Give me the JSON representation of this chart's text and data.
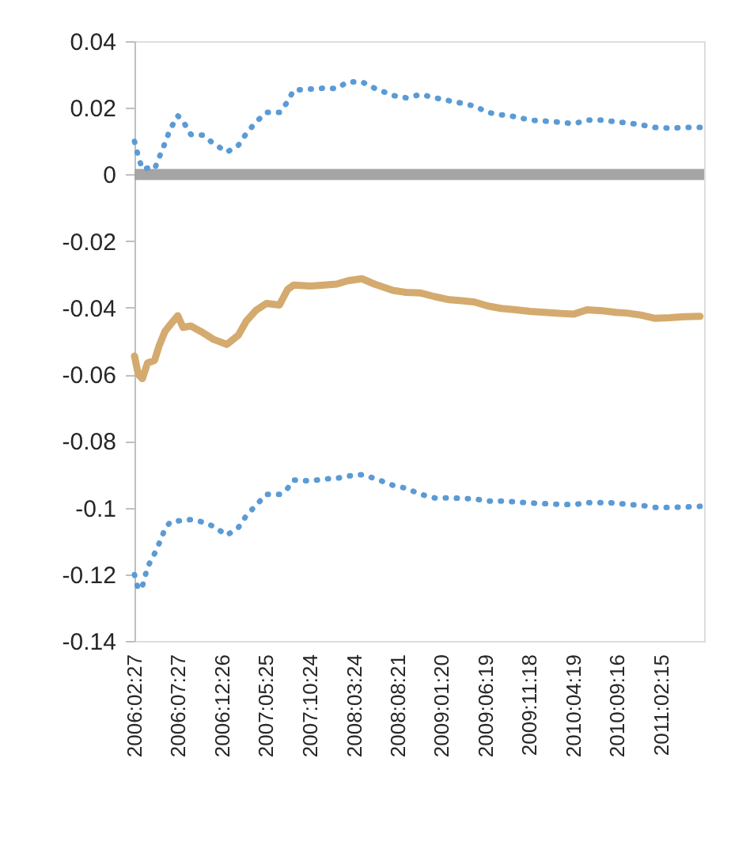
{
  "chart_data": {
    "type": "line",
    "x": [
      "2006-02-27",
      "2006-03-12",
      "2006-03-26",
      "2006-04-13",
      "2006-05-07",
      "2006-05-23",
      "2006-06-12",
      "2006-06-30",
      "2006-07-26",
      "2006-08-13",
      "2006-09-09",
      "2006-10-19",
      "2006-11-26",
      "2007-01-11",
      "2007-02-20",
      "2007-03-19",
      "2007-04-21",
      "2007-05-27",
      "2007-07-11",
      "2007-08-08",
      "2007-08-29",
      "2007-10-25",
      "2007-12-13",
      "2008-01-24",
      "2008-03-03",
      "2008-04-20",
      "2008-06-02",
      "2008-08-05",
      "2008-09-19",
      "2008-11-09",
      "2008-12-28",
      "2009-02-15",
      "2009-03-29",
      "2009-05-13",
      "2009-06-28",
      "2009-08-12",
      "2009-10-02",
      "2009-11-20",
      "2010-01-10",
      "2010-02-28",
      "2010-04-20",
      "2010-06-04",
      "2010-07-27",
      "2010-09-10",
      "2010-10-18",
      "2010-12-06",
      "2011-01-24",
      "2011-03-16",
      "2011-05-04",
      "2011-06-28"
    ],
    "series": [
      {
        "color": "#5b9bd5",
        "line_style": "dotted",
        "values": [
          0.0099,
          0.0054,
          0.0016,
          0.0019,
          0.0016,
          0.0051,
          0.0094,
          0.0136,
          0.0176,
          0.016,
          0.012,
          0.0118,
          0.0093,
          0.0067,
          0.0088,
          0.0123,
          0.0157,
          0.0186,
          0.0186,
          0.0218,
          0.0253,
          0.0256,
          0.0259,
          0.0258,
          0.0278,
          0.0278,
          0.0259,
          0.0237,
          0.023,
          0.024,
          0.023,
          0.0221,
          0.0214,
          0.0205,
          0.0186,
          0.0179,
          0.0173,
          0.0163,
          0.016,
          0.0157,
          0.0152,
          0.0163,
          0.0163,
          0.0158,
          0.0155,
          0.0149,
          0.0141,
          0.0139,
          0.0141,
          0.0141
        ]
      },
      {
        "color": "#d4aa6e",
        "line_style": "solid",
        "values": [
          -0.0545,
          -0.06,
          -0.0613,
          -0.0566,
          -0.0558,
          -0.0514,
          -0.0471,
          -0.0451,
          -0.0424,
          -0.0459,
          -0.0455,
          -0.0474,
          -0.0495,
          -0.051,
          -0.0482,
          -0.044,
          -0.0408,
          -0.0387,
          -0.0392,
          -0.0345,
          -0.0332,
          -0.0335,
          -0.0332,
          -0.0329,
          -0.0319,
          -0.0313,
          -0.0329,
          -0.0348,
          -0.0354,
          -0.0356,
          -0.0367,
          -0.0376,
          -0.0379,
          -0.0383,
          -0.0395,
          -0.0402,
          -0.0406,
          -0.0411,
          -0.0414,
          -0.0417,
          -0.0419,
          -0.0406,
          -0.0409,
          -0.0414,
          -0.0416,
          -0.0422,
          -0.0432,
          -0.043,
          -0.0427,
          -0.0426
        ]
      },
      {
        "color": "#5b9bd5",
        "line_style": "dotted",
        "values": [
          -0.1201,
          -0.1246,
          -0.1236,
          -0.1178,
          -0.1138,
          -0.1107,
          -0.1064,
          -0.1043,
          -0.104,
          -0.1038,
          -0.1036,
          -0.1043,
          -0.1056,
          -0.1083,
          -0.1059,
          -0.1024,
          -0.0993,
          -0.096,
          -0.096,
          -0.0942,
          -0.0917,
          -0.092,
          -0.0914,
          -0.0912,
          -0.0905,
          -0.0901,
          -0.0912,
          -0.0933,
          -0.0942,
          -0.096,
          -0.0971,
          -0.0971,
          -0.0972,
          -0.0974,
          -0.098,
          -0.098,
          -0.0983,
          -0.0986,
          -0.0988,
          -0.099,
          -0.0991,
          -0.0985,
          -0.0985,
          -0.0986,
          -0.099,
          -0.0993,
          -0.0999,
          -0.0999,
          -0.0998,
          -0.0996
        ]
      }
    ],
    "xlim": [
      "2006-02-27",
      "2011-07-12"
    ],
    "xticks": [
      {
        "value": "2006-02-27",
        "label": "2006:02:27"
      },
      {
        "value": "2006-07-27",
        "label": "2006:07:27"
      },
      {
        "value": "2006-12-26",
        "label": "2006:12:26"
      },
      {
        "value": "2007-05-25",
        "label": "2007:05:25"
      },
      {
        "value": "2007-10-24",
        "label": "2007:10:24"
      },
      {
        "value": "2008-03-24",
        "label": "2008:03:24"
      },
      {
        "value": "2008-08-21",
        "label": "2008:08:21"
      },
      {
        "value": "2009-01-20",
        "label": "2009:01:20"
      },
      {
        "value": "2009-06-19",
        "label": "2009:06:19"
      },
      {
        "value": "2009-11-18",
        "label": "2009:11:18"
      },
      {
        "value": "2010-04-19",
        "label": "2010:04:19"
      },
      {
        "value": "2010-09-16",
        "label": "2010:09:16"
      },
      {
        "value": "2011-02-15",
        "label": "2011:02:15"
      }
    ],
    "ylim": [
      -0.14,
      0.04
    ],
    "yticks": [
      -0.14,
      -0.12,
      -0.1,
      -0.08,
      -0.06,
      -0.04,
      -0.02,
      0,
      0.02,
      0.04
    ],
    "ref_lines": [
      {
        "axis": "y",
        "value": 0,
        "color": "#a5a5a5"
      }
    ],
    "grid": false,
    "marker": "none"
  }
}
